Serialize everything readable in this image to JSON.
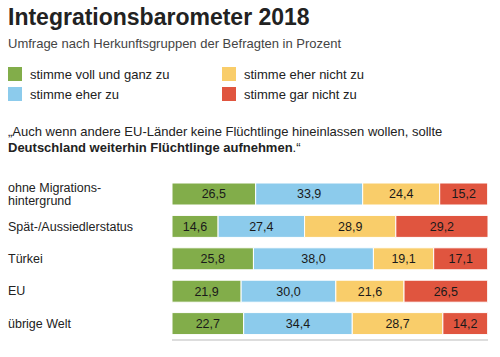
{
  "chart_data": {
    "type": "bar",
    "title": "Integrationsbarometer 2018",
    "subtitle": "Umfrage nach Herkunftsgruppen der Befragten in Prozent",
    "annotation": [
      "„Auch wenn andere EU-Länder keine Flüchtlinge hineinlassen wollen, sollte ",
      "Deutschland weiterhin Flüchtlinge aufnehmen",
      ".“"
    ],
    "orientation": "horizontal",
    "stacked": true,
    "data_labels": true,
    "grid": false,
    "legend": "top-left",
    "tick_labels": "y",
    "categories": [
      "ohne Migrations-\nhintergrund",
      "Spät-/Aussiedlerstatus",
      "Türkei",
      "EU",
      "übrige Welt"
    ],
    "xlim": [
      0,
      100.1
    ],
    "xticks": [],
    "series": [
      {
        "name": "stimme voll und ganz zu",
        "color": "#82ad4a",
        "values": [
          26.5,
          14.6,
          25.8,
          21.9,
          22.7
        ],
        "value_labels": [
          "26,5",
          "14,6",
          "25,8",
          "21,9",
          "22,7"
        ]
      },
      {
        "name": "stimme eher zu",
        "color": "#8ccbec",
        "values": [
          33.9,
          27.4,
          38.0,
          30.0,
          34.4
        ],
        "value_labels": [
          "33,9",
          "27,4",
          "38,0",
          "30,0",
          "34,4"
        ]
      },
      {
        "name": "stimme eher nicht zu",
        "color": "#f9cd6a",
        "values": [
          24.4,
          28.9,
          19.1,
          21.6,
          28.7
        ],
        "value_labels": [
          "24,4",
          "28,9",
          "19,1",
          "21,6",
          "28,7"
        ]
      },
      {
        "name": "stimme gar nicht zu",
        "color": "#e0553f",
        "values": [
          15.2,
          29.2,
          17.1,
          26.5,
          14.2
        ],
        "value_labels": [
          "15,2",
          "29,2",
          "17,1",
          "26,5",
          "14,2"
        ]
      }
    ]
  }
}
